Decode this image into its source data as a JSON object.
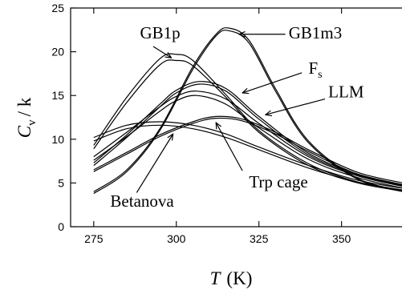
{
  "chart_data": {
    "type": "line",
    "xlim": [
      268,
      370
    ],
    "ylim": [
      0,
      25
    ],
    "x_ticks": [
      "275",
      "300",
      "325",
      "350"
    ],
    "y_ticks": [
      "0",
      "5",
      "10",
      "15",
      "20",
      "25"
    ],
    "xlabel": "T",
    "xlabel_unit": "(K)",
    "ylabel": "C",
    "ylabel_sub": "v",
    "ylabel_tail": "/ k",
    "grid": false,
    "legend": "none",
    "series": [
      {
        "x": [
          275,
          285,
          295,
          300,
          305,
          315,
          325,
          340,
          355,
          370
        ],
        "y": [
          9.3,
          14.8,
          19.2,
          19.7,
          19.0,
          15.1,
          11.0,
          7.2,
          5.1,
          4.1
        ]
      },
      {
        "x": [
          275,
          285,
          295,
          300,
          305,
          315,
          325,
          340,
          355,
          370
        ],
        "y": [
          8.9,
          14.2,
          18.5,
          19.0,
          18.4,
          14.8,
          10.8,
          7.0,
          5.0,
          4.0
        ]
      },
      {
        "x": [
          275,
          285,
          295,
          305,
          312,
          316,
          322,
          330,
          340,
          355,
          370
        ],
        "y": [
          4.0,
          6.5,
          11.2,
          18.3,
          22.0,
          22.7,
          21.3,
          15.8,
          9.8,
          5.5,
          4.0
        ]
      },
      {
        "x": [
          275,
          285,
          295,
          305,
          312,
          316,
          322,
          330,
          340,
          355,
          370
        ],
        "y": [
          3.8,
          6.3,
          11.0,
          18.0,
          21.8,
          22.4,
          21.0,
          15.5,
          9.6,
          5.4,
          3.9
        ]
      },
      {
        "x": [
          275,
          285,
          295,
          300,
          307,
          315,
          325,
          340,
          355,
          370
        ],
        "y": [
          7.3,
          10.5,
          14.0,
          15.6,
          16.6,
          15.8,
          12.6,
          8.4,
          6.0,
          4.7
        ]
      },
      {
        "x": [
          275,
          285,
          295,
          300,
          307,
          315,
          325,
          340,
          355,
          370
        ],
        "y": [
          7.0,
          10.2,
          13.7,
          15.3,
          16.3,
          15.5,
          12.3,
          8.2,
          5.9,
          4.6
        ]
      },
      {
        "x": [
          275,
          285,
          295,
          300,
          306,
          315,
          325,
          340,
          355,
          370
        ],
        "y": [
          8.0,
          10.8,
          13.7,
          14.9,
          15.5,
          14.6,
          11.8,
          8.0,
          5.8,
          4.5
        ]
      },
      {
        "x": [
          275,
          285,
          295,
          300,
          306,
          315,
          325,
          340,
          355,
          370
        ],
        "y": [
          7.6,
          10.3,
          13.2,
          14.4,
          15.0,
          14.0,
          11.3,
          7.7,
          5.6,
          4.3
        ]
      },
      {
        "x": [
          275,
          285,
          295,
          305,
          312,
          320,
          330,
          340,
          355,
          370
        ],
        "y": [
          6.5,
          8.5,
          10.5,
          12.0,
          12.6,
          12.3,
          10.8,
          8.8,
          6.2,
          4.9
        ]
      },
      {
        "x": [
          275,
          285,
          295,
          305,
          312,
          320,
          330,
          340,
          355,
          370
        ],
        "y": [
          6.3,
          8.3,
          10.3,
          11.8,
          12.4,
          12.1,
          10.6,
          8.6,
          6.0,
          4.7
        ]
      },
      {
        "x": [
          275,
          285,
          295,
          305,
          315,
          325,
          340,
          355,
          370
        ],
        "y": [
          10.2,
          11.6,
          12.0,
          11.6,
          10.6,
          9.1,
          7.0,
          5.3,
          4.3
        ]
      },
      {
        "x": [
          275,
          285,
          295,
          305,
          315,
          325,
          340,
          355,
          370
        ],
        "y": [
          9.8,
          11.2,
          11.6,
          11.2,
          10.2,
          8.8,
          6.7,
          5.1,
          4.1
        ]
      }
    ],
    "annotations": [
      {
        "text": "GB1p",
        "text_pos": [
          289,
          21.5
        ],
        "arrow_from": [
          293,
          20.6
        ],
        "arrow_to": [
          298.5,
          19.3
        ]
      },
      {
        "text": "GB1m3",
        "text_pos": [
          334,
          21.5
        ],
        "arrow_from": [
          333,
          22.0
        ],
        "arrow_to": [
          319,
          22.0
        ]
      },
      {
        "text": "F",
        "sub": "s",
        "text_pos": [
          340,
          17.5
        ],
        "arrow_from": [
          338,
          17.6
        ],
        "arrow_to": [
          320,
          15.3
        ]
      },
      {
        "text": "LLM",
        "text_pos": [
          346,
          14.8
        ],
        "arrow_from": [
          345,
          14.6
        ],
        "arrow_to": [
          327,
          12.8
        ]
      },
      {
        "text": "Trp cage",
        "text_pos": [
          322,
          4.5
        ],
        "arrow_from": [
          320,
          6.4
        ],
        "arrow_to": [
          312,
          11.9
        ]
      },
      {
        "text": "Betanova",
        "text_pos": [
          280,
          2.3
        ],
        "arrow_from": [
          288,
          3.9
        ],
        "arrow_to": [
          299,
          10.6
        ]
      }
    ]
  }
}
